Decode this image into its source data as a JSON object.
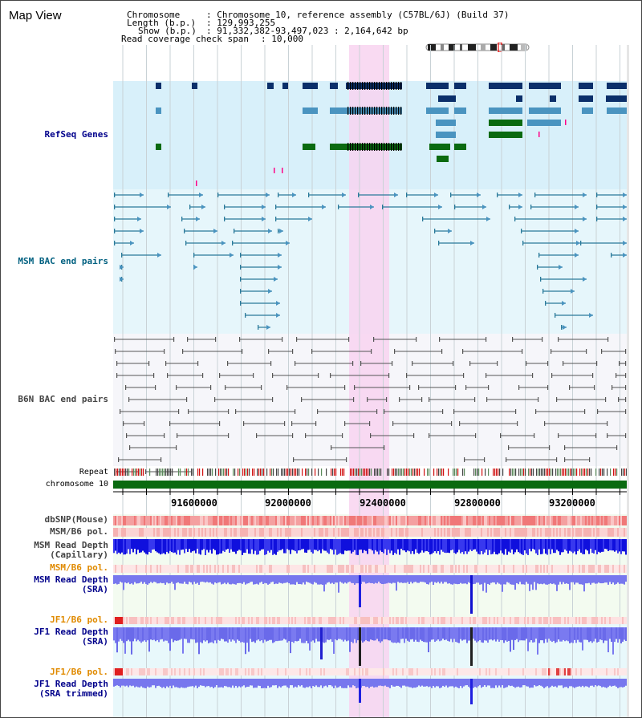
{
  "header": {
    "title": "Map View",
    "chromosome_key": "Chromosome",
    "chromosome_value": ": Chromosome 10, reference assembly (C57BL/6J) (Build 37)",
    "length_key": "Length (b.p.)",
    "length_value": ": 129,993,255",
    "show_key": "Show (b.p.)",
    "show_value": ": 91,332,382-93,497,023 : 2,164,642 bp",
    "coverage_key": "Read coverage check span",
    "coverage_value": ": 10,000"
  },
  "tracks": {
    "refseq": "RefSeq Genes",
    "msm_bac": "MSM BAC end pairs",
    "b6n_bac": "B6N BAC end pairs",
    "repeat": "Repeat",
    "chromosome": "chromosome 10",
    "dbsnp": "dbSNP(Mouse)",
    "msm_b6_pol_1": "MSM/B6 pol.",
    "msm_depth_cap_1": "MSM Read Depth",
    "msm_depth_cap_2": "(Capillary)",
    "msm_b6_pol_2": "MSM/B6 pol.",
    "msm_depth_sra_1": "MSM Read Depth",
    "msm_depth_sra_2": "(SRA)",
    "jf1_b6_pol_1": "JF1/B6 pol.",
    "jf1_depth_sra_1": "JF1 Read Depth",
    "jf1_depth_sra_2": "(SRA)",
    "jf1_b6_pol_2": "JF1/B6 pol.",
    "jf1_depth_trim_1": "JF1 Read Depth",
    "jf1_depth_trim_2": "(SRA trimmed)"
  },
  "ruler": {
    "ticks": [
      "91600000",
      "92000000",
      "92400000",
      "92800000",
      "93200000"
    ]
  },
  "colors": {
    "refseq_bg": "#d8f0fa",
    "msm_bac_bg": "#e6f6fb",
    "b6n_bg": "#f6f6fa",
    "highlight": "#f8d4f0",
    "gene_dark": "#0b2f6a",
    "gene_mid": "#4a94c0",
    "gene_green": "#0a6a10",
    "msm_line": "#2a7a9a",
    "b6n_line": "#555555",
    "chrom_green": "#0a6a10",
    "depth_blue": "#1414e0",
    "depth_light": "#7777ee",
    "pol_red": "#f3a6a6",
    "label_blue": "#00008b",
    "label_orange": "#e08a00",
    "label_teal": "#006080"
  }
}
